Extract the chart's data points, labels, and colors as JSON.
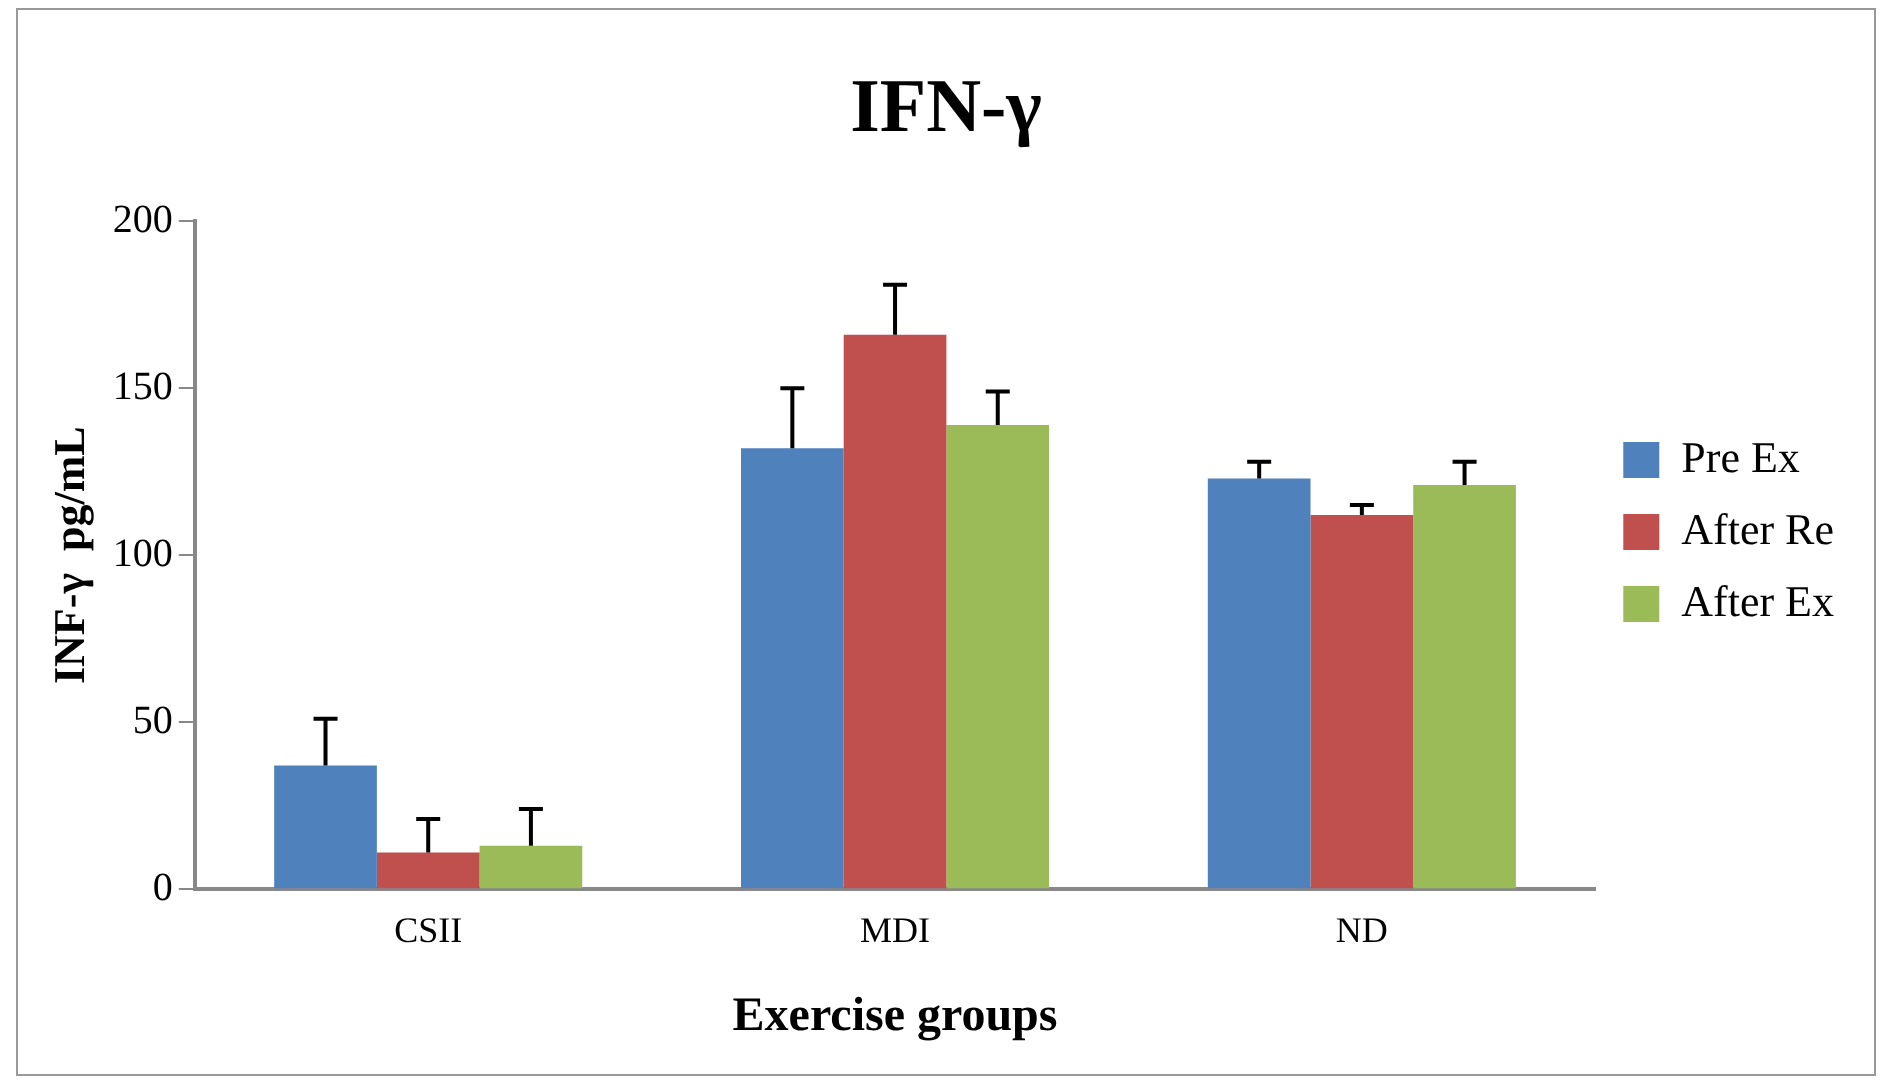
{
  "chart_data": {
    "type": "bar",
    "title": "IFN-γ",
    "xlabel": "Exercise groups",
    "ylabel": "INF-γ  pg/mL",
    "categories": [
      "CSII",
      "MDI",
      "ND"
    ],
    "series": [
      {
        "name": "Pre Ex",
        "color": "#4f81bd",
        "values": [
          37,
          132,
          123
        ],
        "errors": [
          [
            37,
            51
          ],
          [
            132,
            150
          ],
          [
            123,
            128
          ]
        ]
      },
      {
        "name": "After Re",
        "color": "#c0504d",
        "values": [
          11,
          166,
          112
        ],
        "errors": [
          [
            11,
            21
          ],
          [
            166,
            181
          ],
          [
            112,
            115
          ]
        ]
      },
      {
        "name": "After Ex",
        "color": "#9bbb59",
        "values": [
          13,
          139,
          121
        ],
        "errors": [
          [
            13,
            24
          ],
          [
            139,
            149
          ],
          [
            121,
            128
          ]
        ]
      }
    ],
    "ylim": [
      0,
      200
    ],
    "yticks": [
      0,
      50,
      100,
      150,
      200
    ],
    "grid": false,
    "legend": "right"
  }
}
